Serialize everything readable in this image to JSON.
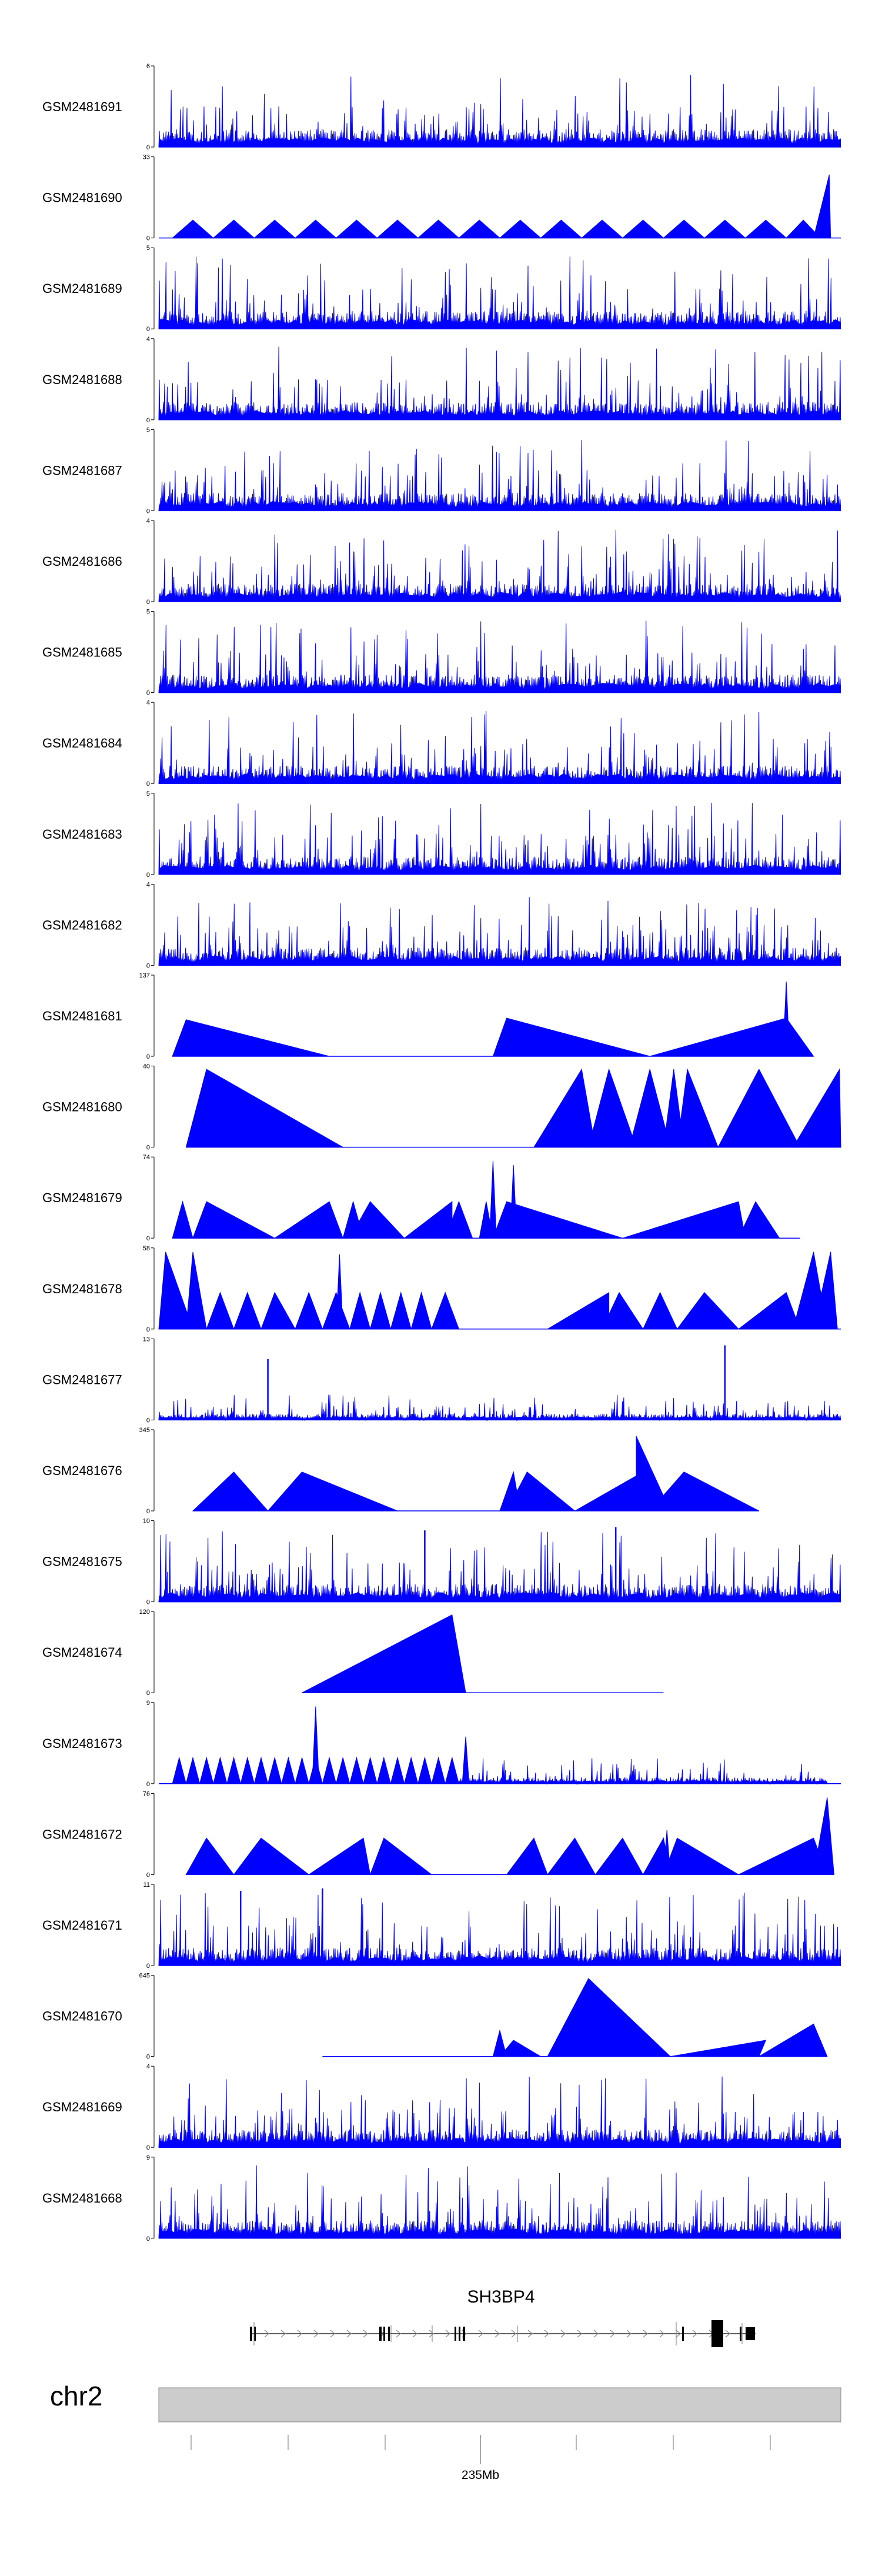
{
  "chart_data": {
    "type": "area",
    "title": "",
    "chromosome": "chr2",
    "gene": {
      "name": "SH3BP4"
    },
    "axis": {
      "major_label": "235Mb"
    },
    "series_color": "#0000ff",
    "tracks": [
      {
        "name": "GSM2481691",
        "ymax": "6",
        "pattern": "dense",
        "seed": 11
      },
      {
        "name": "GSM2481690",
        "ymax": "33",
        "pattern": "peaks",
        "seed": 12,
        "peaks": [
          [
            0.02,
            0.08,
            0.05,
            0.22
          ],
          [
            0.08,
            0.14,
            0.11,
            0.22
          ],
          [
            0.14,
            0.2,
            0.17,
            0.22
          ],
          [
            0.2,
            0.26,
            0.23,
            0.22
          ],
          [
            0.26,
            0.32,
            0.29,
            0.22
          ],
          [
            0.32,
            0.38,
            0.35,
            0.22
          ],
          [
            0.38,
            0.44,
            0.41,
            0.22
          ],
          [
            0.44,
            0.5,
            0.47,
            0.22
          ],
          [
            0.5,
            0.56,
            0.53,
            0.22
          ],
          [
            0.56,
            0.62,
            0.59,
            0.22
          ],
          [
            0.62,
            0.68,
            0.65,
            0.22
          ],
          [
            0.68,
            0.74,
            0.71,
            0.22
          ],
          [
            0.74,
            0.8,
            0.77,
            0.22
          ],
          [
            0.8,
            0.86,
            0.83,
            0.22
          ],
          [
            0.86,
            0.92,
            0.89,
            0.22
          ],
          [
            0.92,
            0.97,
            0.945,
            0.22
          ],
          [
            0.96,
            0.985,
            0.983,
            0.78
          ]
        ]
      },
      {
        "name": "GSM2481689",
        "ymax": "5",
        "pattern": "dense",
        "seed": 13
      },
      {
        "name": "GSM2481688",
        "ymax": "4",
        "pattern": "dense",
        "seed": 14
      },
      {
        "name": "GSM2481687",
        "ymax": "5",
        "pattern": "dense",
        "seed": 15
      },
      {
        "name": "GSM2481686",
        "ymax": "4",
        "pattern": "dense",
        "seed": 16
      },
      {
        "name": "GSM2481685",
        "ymax": "5",
        "pattern": "dense",
        "seed": 17
      },
      {
        "name": "GSM2481684",
        "ymax": "4",
        "pattern": "dense",
        "seed": 18
      },
      {
        "name": "GSM2481683",
        "ymax": "5",
        "pattern": "dense",
        "seed": 19
      },
      {
        "name": "GSM2481682",
        "ymax": "4",
        "pattern": "dense",
        "seed": 20
      },
      {
        "name": "GSM2481681",
        "ymax": "137",
        "pattern": "peaks",
        "seed": 21,
        "covered": [
          0.02,
          0.96
        ],
        "peaks": [
          [
            0.02,
            0.25,
            0.04,
            0.45
          ],
          [
            0.49,
            0.72,
            0.51,
            0.47
          ],
          [
            0.72,
            0.96,
            0.92,
            0.47
          ],
          [
            0.915,
            0.925,
            0.92,
            0.92
          ]
        ]
      },
      {
        "name": "GSM2481680",
        "ymax": "40",
        "pattern": "peaks",
        "seed": 22,
        "covered": [
          0.04,
          1.0
        ],
        "peaks": [
          [
            0.04,
            0.27,
            0.07,
            0.96
          ],
          [
            0.55,
            0.64,
            0.62,
            0.96
          ],
          [
            0.63,
            0.7,
            0.66,
            0.96
          ],
          [
            0.69,
            0.75,
            0.72,
            0.96
          ],
          [
            0.74,
            0.77,
            0.755,
            0.96
          ],
          [
            0.76,
            0.82,
            0.775,
            0.96
          ],
          [
            0.82,
            0.94,
            0.88,
            0.96
          ],
          [
            0.93,
            1.0,
            0.998,
            0.96
          ]
        ]
      },
      {
        "name": "GSM2481679",
        "ymax": "74",
        "pattern": "peaks",
        "seed": 23,
        "covered": [
          0.02,
          0.94
        ],
        "peaks": [
          [
            0.02,
            0.05,
            0.035,
            0.45
          ],
          [
            0.05,
            0.17,
            0.07,
            0.45
          ],
          [
            0.17,
            0.27,
            0.25,
            0.45
          ],
          [
            0.27,
            0.3,
            0.285,
            0.45
          ],
          [
            0.28,
            0.36,
            0.31,
            0.45
          ],
          [
            0.36,
            0.43,
            0.43,
            0.45
          ],
          [
            0.42,
            0.46,
            0.44,
            0.45
          ],
          [
            0.47,
            0.49,
            0.48,
            0.45
          ],
          [
            0.49,
            0.68,
            0.51,
            0.45
          ],
          [
            0.68,
            0.86,
            0.85,
            0.45
          ],
          [
            0.85,
            0.91,
            0.875,
            0.45
          ],
          [
            0.485,
            0.495,
            0.49,
            0.95
          ],
          [
            0.515,
            0.525,
            0.52,
            0.9
          ]
        ]
      },
      {
        "name": "GSM2481678",
        "ymax": "58",
        "pattern": "peaks",
        "seed": 24,
        "covered": [
          0.0,
          1.0
        ],
        "peaks": [
          [
            0.0,
            0.05,
            0.01,
            0.95
          ],
          [
            0.04,
            0.07,
            0.05,
            0.95
          ],
          [
            0.07,
            0.11,
            0.09,
            0.45
          ],
          [
            0.11,
            0.15,
            0.13,
            0.45
          ],
          [
            0.15,
            0.2,
            0.17,
            0.45
          ],
          [
            0.2,
            0.24,
            0.22,
            0.45
          ],
          [
            0.24,
            0.28,
            0.26,
            0.45
          ],
          [
            0.28,
            0.31,
            0.295,
            0.45
          ],
          [
            0.31,
            0.34,
            0.325,
            0.45
          ],
          [
            0.34,
            0.37,
            0.355,
            0.45
          ],
          [
            0.37,
            0.4,
            0.385,
            0.45
          ],
          [
            0.4,
            0.44,
            0.42,
            0.45
          ],
          [
            0.57,
            0.66,
            0.66,
            0.45
          ],
          [
            0.65,
            0.71,
            0.675,
            0.45
          ],
          [
            0.71,
            0.76,
            0.735,
            0.45
          ],
          [
            0.76,
            0.85,
            0.8,
            0.45
          ],
          [
            0.85,
            0.94,
            0.92,
            0.45
          ],
          [
            0.93,
            0.98,
            0.96,
            0.95
          ],
          [
            0.96,
            0.995,
            0.985,
            0.95
          ],
          [
            0.26,
            0.27,
            0.265,
            0.92
          ]
        ]
      },
      {
        "name": "GSM2481677",
        "ymax": "13",
        "pattern": "sparse",
        "seed": 25,
        "spikes": [
          [
            0.16,
            0.75
          ],
          [
            0.83,
            0.92
          ]
        ]
      },
      {
        "name": "GSM2481676",
        "ymax": "345",
        "pattern": "peaks",
        "seed": 26,
        "covered": [
          0.05,
          0.88
        ],
        "peaks": [
          [
            0.05,
            0.16,
            0.11,
            0.48
          ],
          [
            0.16,
            0.35,
            0.21,
            0.48
          ],
          [
            0.5,
            0.53,
            0.52,
            0.48
          ],
          [
            0.51,
            0.61,
            0.54,
            0.48
          ],
          [
            0.61,
            0.73,
            0.71,
            0.48
          ],
          [
            0.7,
            0.75,
            0.7,
            0.92
          ],
          [
            0.72,
            0.88,
            0.77,
            0.48
          ]
        ]
      },
      {
        "name": "GSM2481675",
        "ymax": "10",
        "pattern": "dense",
        "seed": 27,
        "spikes": [
          [
            0.39,
            0.88
          ],
          [
            0.67,
            0.92
          ]
        ]
      },
      {
        "name": "GSM2481674",
        "ymax": "120",
        "pattern": "peaks",
        "seed": 28,
        "covered": [
          0.21,
          0.74
        ],
        "peaks": [
          [
            0.21,
            0.45,
            0.43,
            0.96
          ]
        ]
      },
      {
        "name": "GSM2481673",
        "ymax": "9",
        "pattern": "peaks",
        "seed": 29,
        "dense_tail": [
          0.44,
          0.98
        ],
        "peaks": [
          [
            0.02,
            0.04,
            0.03,
            0.32
          ],
          [
            0.04,
            0.06,
            0.05,
            0.32
          ],
          [
            0.06,
            0.08,
            0.07,
            0.32
          ],
          [
            0.08,
            0.1,
            0.09,
            0.32
          ],
          [
            0.1,
            0.12,
            0.11,
            0.32
          ],
          [
            0.12,
            0.14,
            0.13,
            0.32
          ],
          [
            0.14,
            0.16,
            0.15,
            0.32
          ],
          [
            0.16,
            0.18,
            0.17,
            0.32
          ],
          [
            0.18,
            0.2,
            0.19,
            0.32
          ],
          [
            0.2,
            0.22,
            0.21,
            0.32
          ],
          [
            0.22,
            0.24,
            0.23,
            0.32
          ],
          [
            0.24,
            0.26,
            0.25,
            0.32
          ],
          [
            0.26,
            0.28,
            0.27,
            0.32
          ],
          [
            0.28,
            0.3,
            0.29,
            0.32
          ],
          [
            0.3,
            0.32,
            0.31,
            0.32
          ],
          [
            0.32,
            0.34,
            0.33,
            0.32
          ],
          [
            0.34,
            0.36,
            0.35,
            0.32
          ],
          [
            0.36,
            0.38,
            0.37,
            0.32
          ],
          [
            0.38,
            0.4,
            0.39,
            0.32
          ],
          [
            0.4,
            0.42,
            0.41,
            0.32
          ],
          [
            0.42,
            0.44,
            0.43,
            0.32
          ],
          [
            0.225,
            0.235,
            0.23,
            0.95
          ],
          [
            0.445,
            0.455,
            0.45,
            0.58
          ]
        ]
      },
      {
        "name": "GSM2481672",
        "ymax": "76",
        "pattern": "peaks",
        "seed": 30,
        "covered": [
          0.04,
          0.99
        ],
        "peaks": [
          [
            0.04,
            0.11,
            0.07,
            0.45
          ],
          [
            0.11,
            0.22,
            0.15,
            0.45
          ],
          [
            0.22,
            0.31,
            0.3,
            0.45
          ],
          [
            0.31,
            0.4,
            0.33,
            0.45
          ],
          [
            0.51,
            0.57,
            0.55,
            0.45
          ],
          [
            0.57,
            0.64,
            0.61,
            0.45
          ],
          [
            0.64,
            0.71,
            0.68,
            0.45
          ],
          [
            0.71,
            0.75,
            0.74,
            0.45
          ],
          [
            0.74,
            0.85,
            0.76,
            0.45
          ],
          [
            0.85,
            0.98,
            0.96,
            0.45
          ],
          [
            0.96,
            0.99,
            0.98,
            0.95
          ],
          [
            0.74,
            0.75,
            0.745,
            0.55
          ]
        ]
      },
      {
        "name": "GSM2481671",
        "ymax": "11",
        "pattern": "dense",
        "seed": 31,
        "spikes": [
          [
            0.12,
            0.92
          ],
          [
            0.24,
            0.95
          ]
        ]
      },
      {
        "name": "GSM2481670",
        "ymax": "645",
        "pattern": "peaks",
        "seed": 32,
        "covered": [
          0.24,
          0.98
        ],
        "peaks": [
          [
            0.49,
            0.51,
            0.5,
            0.32
          ],
          [
            0.5,
            0.56,
            0.52,
            0.2
          ],
          [
            0.57,
            0.75,
            0.63,
            0.96
          ],
          [
            0.75,
            0.88,
            0.89,
            0.2
          ],
          [
            0.88,
            0.98,
            0.96,
            0.4
          ]
        ]
      },
      {
        "name": "GSM2481669",
        "ymax": "4",
        "pattern": "dense",
        "seed": 33
      },
      {
        "name": "GSM2481668",
        "ymax": "9",
        "pattern": "dense",
        "seed": 34
      }
    ]
  }
}
